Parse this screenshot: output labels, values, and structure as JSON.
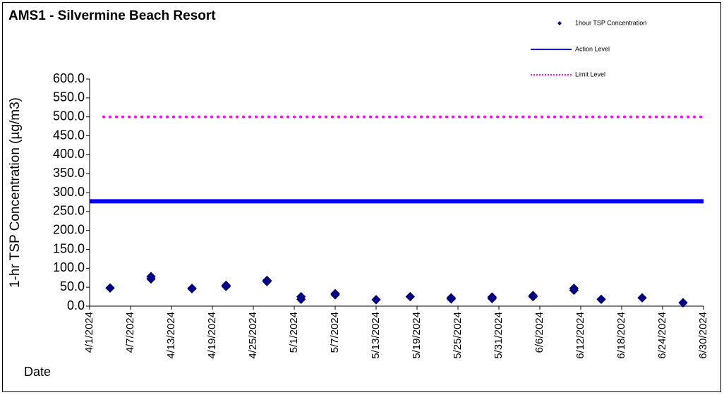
{
  "chart_data": {
    "type": "scatter",
    "title": "AMS1 - Silvermine Beach Resort",
    "ylabel": "1-hr TSP Concentration (µg/m3)",
    "xlabel": "Date",
    "x": [
      "4/4/2024",
      "4/10/2024",
      "4/10/2024",
      "4/16/2024",
      "4/16/2024",
      "4/21/2024",
      "4/21/2024",
      "4/27/2024",
      "4/27/2024",
      "5/2/2024",
      "5/2/2024",
      "5/7/2024",
      "5/7/2024",
      "5/13/2024",
      "5/18/2024",
      "5/24/2024",
      "5/24/2024",
      "5/30/2024",
      "5/30/2024",
      "6/5/2024",
      "6/5/2024",
      "6/11/2024",
      "6/11/2024",
      "6/15/2024",
      "6/21/2024",
      "6/27/2024"
    ],
    "series": [
      {
        "name": "1hour TSP Concentration",
        "color": "#000080",
        "values": [
          48,
          78,
          72,
          46,
          47,
          52,
          55,
          68,
          65,
          25,
          18,
          33,
          30,
          17,
          25,
          22,
          19,
          24,
          20,
          28,
          25,
          47,
          42,
          18,
          22,
          9
        ]
      }
    ],
    "reference_lines": [
      {
        "name": "Action Level",
        "value": 277,
        "color": "#0000ff",
        "style": "solid"
      },
      {
        "name": "Limit Level",
        "value": 500,
        "color": "#ff00ff",
        "style": "dotted"
      }
    ],
    "xlim": [
      "4/1/2024",
      "6/30/2024"
    ],
    "xticks": [
      "4/1/2024",
      "4/7/2024",
      "4/13/2024",
      "4/19/2024",
      "4/25/2024",
      "5/1/2024",
      "5/7/2024",
      "5/13/2024",
      "5/19/2024",
      "5/25/2024",
      "5/31/2024",
      "6/6/2024",
      "6/12/2024",
      "6/18/2024",
      "6/24/2024",
      "6/30/2024"
    ],
    "ylim": [
      0,
      600
    ],
    "yticks": [
      {
        "value": 0,
        "label": "0.0"
      },
      {
        "value": 50,
        "label": "50.0"
      },
      {
        "value": 100,
        "label": "100.0"
      },
      {
        "value": 150,
        "label": "150.0"
      },
      {
        "value": 200,
        "label": "200.0"
      },
      {
        "value": 250,
        "label": "250.0"
      },
      {
        "value": 300,
        "label": "300.0"
      },
      {
        "value": 350,
        "label": "350.0"
      },
      {
        "value": 400,
        "label": "400.0"
      },
      {
        "value": 450,
        "label": "450.0"
      },
      {
        "value": 500,
        "label": "500.0"
      },
      {
        "value": 550,
        "label": "550.0"
      },
      {
        "value": 600,
        "label": "600.0"
      }
    ],
    "grid": false,
    "legend": "top-right"
  }
}
